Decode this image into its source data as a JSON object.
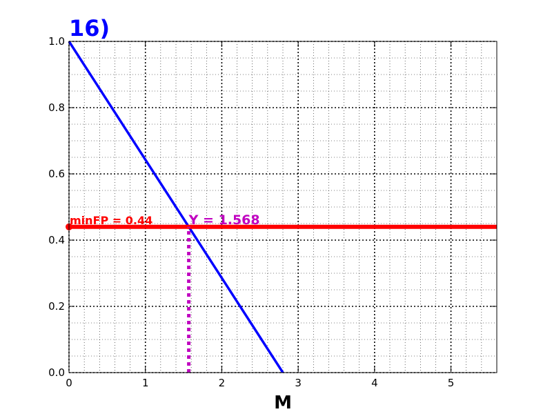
{
  "chart_data": {
    "type": "line",
    "title": "16)",
    "title_color": "#0000ff",
    "xlabel": "M",
    "ylabel": "",
    "xlim": [
      0,
      5.6
    ],
    "ylim": [
      0,
      1.0
    ],
    "grid": true,
    "x_ticks": [
      0,
      1,
      2,
      3,
      4,
      5
    ],
    "x_tick_labels": [
      "0",
      "1",
      "2",
      "3",
      "4",
      "5"
    ],
    "y_ticks": [
      0.0,
      0.2,
      0.4,
      0.6,
      0.8,
      1.0
    ],
    "y_tick_labels": [
      "0.0",
      "0.2",
      "0.4",
      "0.6",
      "0.8",
      "1.0"
    ],
    "x_minor_step": 0.2,
    "y_minor_step": 0.05,
    "series": [
      {
        "x": [
          0,
          2.8
        ],
        "y": [
          1.0,
          0.0
        ],
        "color": "#0000ff",
        "style": "solid"
      },
      {
        "x": [
          0,
          5.6
        ],
        "y": [
          0.44,
          0.44
        ],
        "color": "#ff0000",
        "style": "solid"
      },
      {
        "x": [
          1.568,
          1.568
        ],
        "y": [
          0.0,
          0.44
        ],
        "color": "#c000c0",
        "style": "dotted"
      }
    ],
    "points": [
      {
        "x": 0,
        "y": 0.44,
        "color": "#ff0000"
      }
    ],
    "annotations": [
      {
        "text": "minFP = 0.44",
        "x": 0,
        "y": 0.44,
        "color": "#ff0000"
      },
      {
        "text": "Y = 1.568",
        "x": 1.568,
        "y": 0.44,
        "color": "#c000c0"
      }
    ]
  }
}
